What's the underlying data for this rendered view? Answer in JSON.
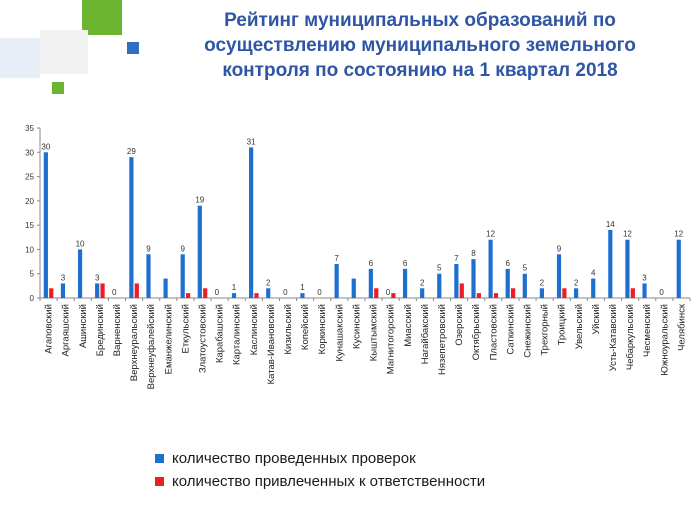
{
  "title": {
    "line1": "Рейтинг муниципальных образований по",
    "line2": "осуществлению муниципального земельного",
    "line3": "контроля  по состоянию на 1 квартал 2018"
  },
  "colors": {
    "series_checks": "#1f6fd1",
    "series_liable": "#ee1c25",
    "title": "#2f55a4",
    "deco_green": "#6ab430",
    "deco_blue": "#2f6fc0"
  },
  "chart_data": {
    "type": "bar",
    "ylim": [
      0,
      35
    ],
    "yticks": [
      0,
      5,
      10,
      15,
      20,
      25,
      30,
      35
    ],
    "grid": false,
    "legend_position": "bottom",
    "categories": [
      "Агаповский",
      "Аргаяшский",
      "Ашинский",
      "Брединский",
      "Варненский",
      "Верхнеуральский",
      "Верхнеуфалейский",
      "Еманжелинский",
      "Еткульский",
      "Златоустовский",
      "Карабашский",
      "Карталинский",
      "Каслинский",
      "Катав-Ивановский",
      "Кизильский",
      "Копейский",
      "Коркинский",
      "Кунашакский",
      "Кусинский",
      "Кыштымский",
      "Магнитогорский",
      "Миасский",
      "Нагайбакский",
      "Нязепетровский",
      "Озерский",
      "Октябрьский",
      "Пластовский",
      "Саткинский",
      "Снежинский",
      "Трехгорный",
      "Троицкий",
      "Увельский",
      "Уйский",
      "Усть-Катавский",
      "Чебаркульский",
      "Чесменский",
      "Южноуральский",
      "Челябинск"
    ],
    "series": [
      {
        "name": "количество проведенных проверок",
        "values": [
          30,
          3,
          10,
          3,
          0,
          29,
          9,
          4,
          9,
          19,
          0,
          1,
          31,
          2,
          0,
          1,
          0,
          7,
          4,
          6,
          0,
          6,
          2,
          5,
          7,
          8,
          12,
          6,
          5,
          2,
          9,
          2,
          4,
          14,
          12,
          3,
          0,
          12
        ],
        "labels": [
          "30",
          "3",
          "10",
          "3",
          "0",
          "29",
          "9",
          "",
          "9",
          "19",
          "0",
          "1",
          "31",
          "2",
          "0",
          "1",
          "0",
          "7",
          "",
          "6",
          "0",
          "6",
          "2",
          "5",
          "7",
          "8",
          "12",
          "6",
          "5",
          "2",
          "9",
          "2",
          "4",
          "14",
          "12",
          "3",
          "0",
          "12"
        ]
      },
      {
        "name": "количество привлеченных к ответственности",
        "values": [
          2,
          0,
          0,
          3,
          0,
          3,
          0,
          0,
          1,
          2,
          0,
          0,
          1,
          0,
          0,
          0,
          0,
          0,
          0,
          2,
          1,
          0,
          0,
          0,
          3,
          1,
          1,
          2,
          0,
          0,
          2,
          0,
          0,
          0,
          2,
          0,
          0,
          0
        ]
      }
    ]
  }
}
